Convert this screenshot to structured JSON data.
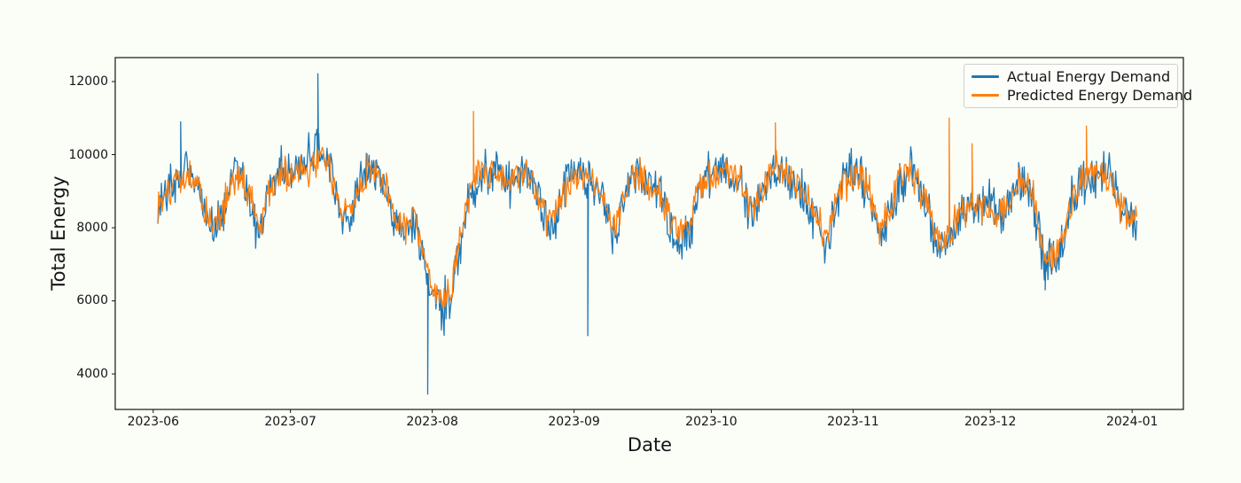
{
  "chart_data": {
    "type": "line",
    "title": "",
    "xlabel": "Date",
    "ylabel": "Total Energy",
    "background": "#fbfdf7",
    "grid": false,
    "legend": {
      "position": "upper right",
      "entries": [
        "Actual Energy Demand",
        "Predicted Energy Demand"
      ]
    },
    "y_ticks": [
      4000,
      6000,
      8000,
      10000,
      12000
    ],
    "ylim": [
      3030,
      12655
    ],
    "x_tick_labels": [
      "2023-06",
      "2023-07",
      "2023-08",
      "2023-09",
      "2023-10",
      "2023-11",
      "2023-12",
      "2024-01"
    ],
    "x_tick_days": [
      0,
      30,
      61,
      92,
      122,
      153,
      183,
      214
    ],
    "xlim_days": [
      -8.3,
      225.2
    ],
    "x_day0_date": "2023-06-01",
    "x_start_day": 1,
    "x_step_days": 2,
    "series": [
      {
        "name": "Actual Energy Demand",
        "color": "#1f77b4",
        "noise_amplitude": 900,
        "values": [
          8650,
          9100,
          9500,
          9600,
          9300,
          8500,
          7900,
          8300,
          9300,
          9500,
          8800,
          7700,
          8800,
          9400,
          9500,
          9600,
          9700,
          10000,
          10300,
          9500,
          8300,
          8100,
          9200,
          9700,
          9500,
          9000,
          8100,
          7800,
          8200,
          7200,
          6300,
          5850,
          6100,
          7600,
          8900,
          9400,
          9500,
          9600,
          9400,
          9200,
          9400,
          9300,
          8400,
          7900,
          8800,
          9300,
          9500,
          9200,
          9300,
          8400,
          7700,
          8800,
          9500,
          9400,
          9300,
          9000,
          8000,
          7500,
          7800,
          8900,
          9400,
          9600,
          9600,
          9500,
          8900,
          8300,
          9000,
          9500,
          9600,
          9400,
          9000,
          8600,
          8300,
          7300,
          8600,
          9300,
          9500,
          9500,
          8600,
          7800,
          8300,
          9300,
          9400,
          9300,
          8600,
          7600,
          7500,
          8000,
          8300,
          8600,
          8500,
          8500,
          8300,
          8700,
          9200,
          9300,
          8400,
          7100,
          7000,
          7600,
          8700,
          9300,
          9400,
          9500,
          9400,
          8700,
          8300,
          8200
        ],
        "spikes": [
          {
            "day": 6,
            "value": 10900
          },
          {
            "day": 36,
            "value": 12215
          },
          {
            "day": 60,
            "value": 3450
          },
          {
            "day": 95,
            "value": 5050
          },
          {
            "day": 195,
            "value": 6300
          }
        ]
      },
      {
        "name": "Predicted Energy Demand",
        "color": "#ff7f0e",
        "noise_amplitude": 650,
        "values": [
          8400,
          9000,
          9400,
          9500,
          9400,
          8600,
          8100,
          8400,
          9200,
          9400,
          8900,
          7900,
          8900,
          9300,
          9500,
          9500,
          9600,
          9800,
          9900,
          9400,
          8500,
          8300,
          9100,
          9500,
          9400,
          9100,
          8300,
          8000,
          8300,
          7400,
          6400,
          6000,
          6300,
          7700,
          9000,
          9500,
          9400,
          9500,
          9300,
          9300,
          9400,
          9200,
          8600,
          8100,
          8900,
          9300,
          9400,
          9300,
          9200,
          8600,
          7900,
          8900,
          9400,
          9300,
          9200,
          9000,
          8200,
          7700,
          8000,
          9000,
          9300,
          9500,
          9500,
          9400,
          9000,
          8500,
          9100,
          9600,
          9700,
          9400,
          9100,
          8700,
          8400,
          7500,
          8700,
          9200,
          9400,
          9400,
          8700,
          8000,
          8400,
          9400,
          9500,
          9300,
          8700,
          7800,
          7600,
          8100,
          8400,
          8700,
          8600,
          8500,
          8400,
          8800,
          9300,
          9300,
          8500,
          7300,
          7200,
          7800,
          8800,
          9400,
          9500,
          9500,
          9300,
          8800,
          8400,
          8300
        ],
        "spikes": [
          {
            "day": 70,
            "value": 11180
          },
          {
            "day": 136,
            "value": 10870
          },
          {
            "day": 174,
            "value": 11000
          },
          {
            "day": 179,
            "value": 10300
          },
          {
            "day": 204,
            "value": 10780
          }
        ]
      }
    ]
  }
}
